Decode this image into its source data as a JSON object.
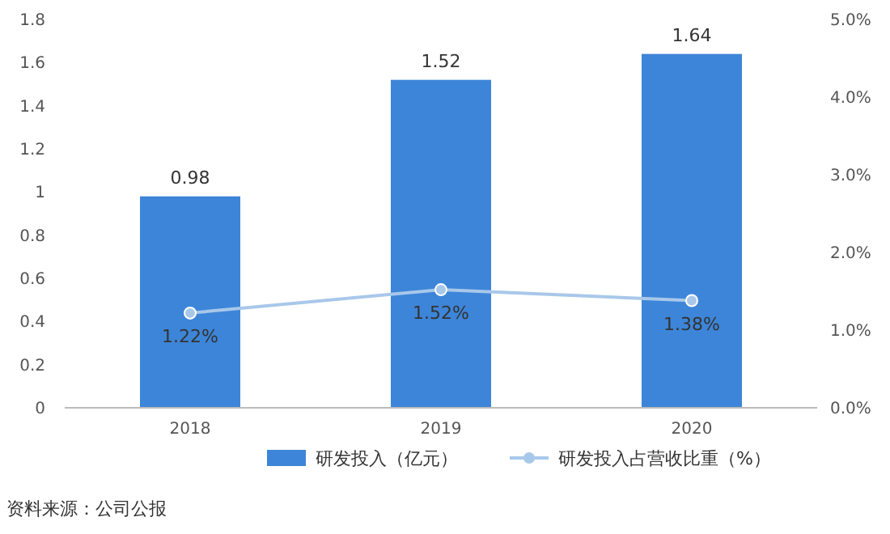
{
  "chart_data": {
    "type": "bar",
    "categories": [
      "2018",
      "2019",
      "2020"
    ],
    "series": [
      {
        "name": "研发投入（亿元）",
        "color": "#3d85d8",
        "values": [
          0.98,
          1.52,
          1.64
        ],
        "value_labels": [
          "0.98",
          "1.52",
          "1.64"
        ]
      },
      {
        "name": "研发投入占营收比重（%）",
        "type": "line",
        "axis": "y2",
        "color": "#a8c8ea",
        "values": [
          1.22,
          1.52,
          1.38
        ],
        "value_labels": [
          "1.22%",
          "1.52%",
          "1.38%"
        ]
      }
    ],
    "ylim": [
      0,
      1.8
    ],
    "yticks": [
      0,
      0.2,
      0.4,
      0.6,
      0.8,
      1,
      1.2,
      1.4,
      1.6,
      1.8
    ],
    "y2lim": [
      0,
      5
    ],
    "y2ticks": [
      {
        "value": 0,
        "label": "0.0%"
      },
      {
        "value": 1,
        "label": "1.0%"
      },
      {
        "value": 2,
        "label": "2.0%"
      },
      {
        "value": 3,
        "label": "3.0%"
      },
      {
        "value": 4,
        "label": "4.0%"
      },
      {
        "value": 5,
        "label": "5.0%"
      }
    ],
    "marker": "circle",
    "legend": "bottom",
    "grid": false,
    "annotations": [
      "资料来源：公司公报"
    ]
  }
}
